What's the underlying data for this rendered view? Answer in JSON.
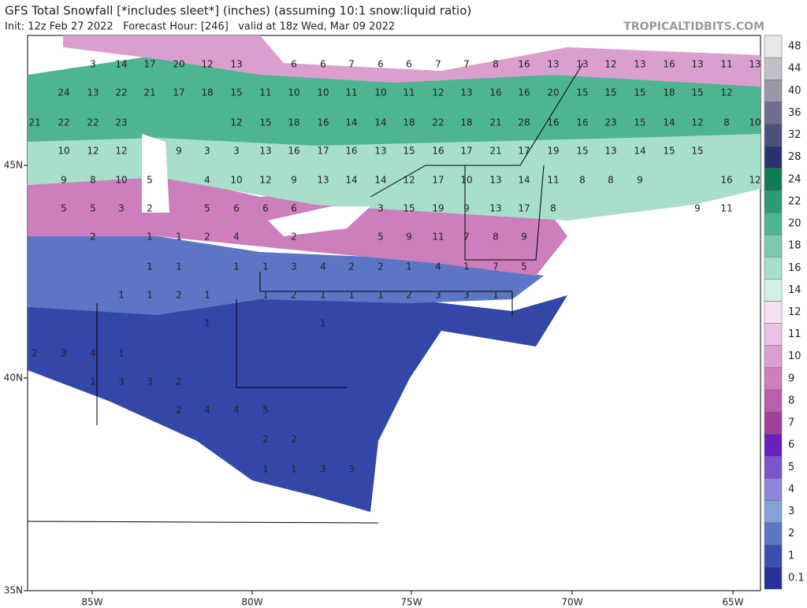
{
  "header": {
    "title": "GFS Total Snowfall [*includes sleet*] (inches) (assuming 10:1 snow:liquid ratio)",
    "subtitle": "Init: 12z Feb 27 2022   Forecast Hour: [246]   valid at 18z Wed, Mar 09 2022",
    "source": "TROPICALTIDBITS.COM"
  },
  "colorbar": {
    "levels": [
      "0.1",
      "1",
      "2",
      "3",
      "4",
      "5",
      "6",
      "7",
      "8",
      "9",
      "10",
      "11",
      "12",
      "14",
      "16",
      "18",
      "20",
      "22",
      "24",
      "28",
      "32",
      "36",
      "40",
      "44",
      "48"
    ],
    "colors": [
      "#26339a",
      "#3a4fb2",
      "#5b76c4",
      "#84a2d8",
      "#8f86dc",
      "#7a55cc",
      "#6a1fb8",
      "#a2419c",
      "#bb5faa",
      "#cc7fbc",
      "#db9fcf",
      "#e8c2e2",
      "#f4e0f1",
      "#d3f0e5",
      "#a7dfca",
      "#7ccbae",
      "#4eb593",
      "#2b9b75",
      "#0f7a56",
      "#2a3270",
      "#4a507e",
      "#6f7090",
      "#9a98a8",
      "#c1c0c8",
      "#e7e7ea"
    ]
  },
  "axes": {
    "lon_labels": [
      "85W",
      "80W",
      "75W",
      "70W",
      "65W"
    ],
    "lat_labels": [
      "45N",
      "40N",
      "35N"
    ]
  },
  "map_labels": [
    [
      "3",
      "14",
      "17",
      "20",
      "12",
      "13",
      "6",
      "6",
      "7",
      "6",
      "6",
      "7",
      "7",
      "8",
      "16",
      "13",
      "13",
      "12",
      "13",
      "16",
      "13",
      "11",
      "13"
    ],
    [
      "24",
      "13",
      "22",
      "21",
      "17",
      "18",
      "15",
      "11",
      "10",
      "10",
      "11",
      "10",
      "11",
      "12",
      "13",
      "16",
      "16",
      "20",
      "15",
      "15",
      "15",
      "18",
      "15",
      "12"
    ],
    [
      "21",
      "22",
      "22",
      "23",
      "12",
      "15",
      "18",
      "16",
      "14",
      "14",
      "18",
      "22",
      "18",
      "21",
      "28",
      "16",
      "16",
      "23",
      "15",
      "14",
      "12",
      "8",
      "10"
    ],
    [
      "10",
      "12",
      "12",
      "9",
      "3",
      "3",
      "13",
      "16",
      "17",
      "16",
      "13",
      "15",
      "16",
      "17",
      "21",
      "17",
      "19",
      "15",
      "13",
      "14",
      "15",
      "15"
    ],
    [
      "9",
      "8",
      "10",
      "5",
      "4",
      "10",
      "12",
      "9",
      "13",
      "14",
      "14",
      "12",
      "17",
      "10",
      "13",
      "14",
      "11",
      "8",
      "8",
      "9",
      "16",
      "12"
    ],
    [
      "5",
      "5",
      "3",
      "2",
      "5",
      "6",
      "6",
      "6",
      "3",
      "15",
      "19",
      "9",
      "13",
      "17",
      "8",
      "9",
      "11"
    ],
    [
      "2",
      "1",
      "1",
      "2",
      "4",
      "2",
      "5",
      "9",
      "11",
      "7",
      "8",
      "9"
    ],
    [
      "1",
      "1",
      "1",
      "1",
      "3",
      "4",
      "2",
      "2",
      "1",
      "4",
      "1",
      "7",
      "5"
    ],
    [
      "1",
      "1",
      "2",
      "1",
      "1",
      "2",
      "1",
      "1",
      "1",
      "2",
      "3",
      "3",
      "1"
    ],
    [
      "1",
      "1"
    ],
    [
      "2",
      "3",
      "4",
      "1"
    ],
    [
      "1",
      "3",
      "3",
      "2"
    ],
    [
      "2",
      "4",
      "4",
      "5"
    ],
    [
      "2",
      "2"
    ],
    [
      "1",
      "1",
      "3",
      "3"
    ]
  ]
}
